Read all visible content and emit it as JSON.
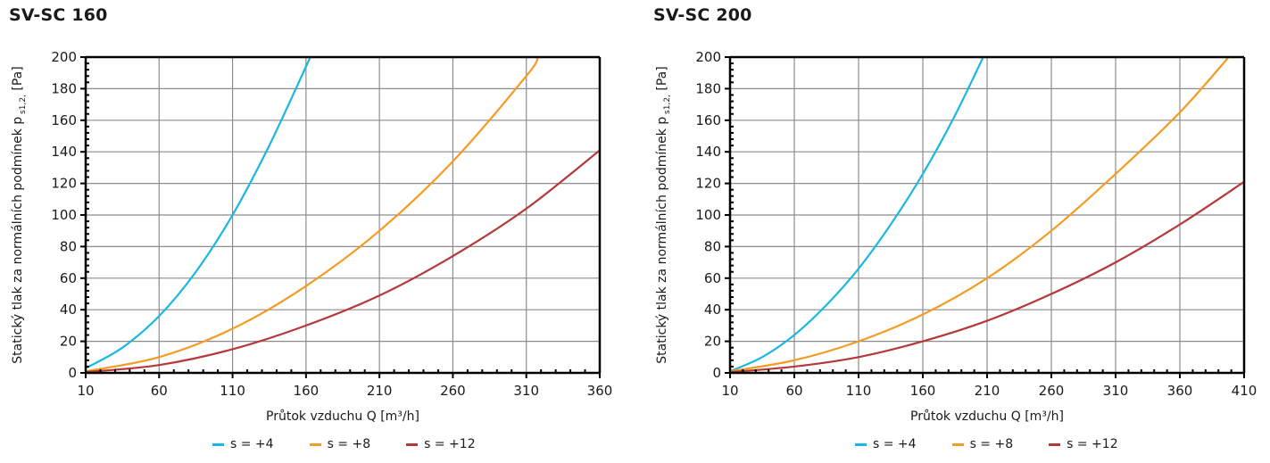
{
  "chart_data": [
    {
      "type": "line",
      "title": "SV-SC 160",
      "xlabel": "Průtok vzduchu Q [m³/h]",
      "ylabel": "Statický tlak za normálních podmínek p",
      "ylabel_sub": "s1,2,",
      "ylabel_unit": "[Pa]",
      "xlim": [
        10,
        360
      ],
      "ylim": [
        0,
        200
      ],
      "xticks": [
        10,
        60,
        110,
        160,
        210,
        260,
        310,
        360
      ],
      "yticks": [
        0,
        20,
        40,
        60,
        80,
        100,
        120,
        140,
        160,
        180,
        200
      ],
      "grid": true,
      "legend_position": "bottom-center",
      "series": [
        {
          "name": "s = +4",
          "color": "#1ab8e0",
          "x": [
            10,
            35,
            60,
            85,
            110,
            135,
            160,
            163
          ],
          "y": [
            3,
            16,
            36,
            64,
            100,
            144,
            194,
            200
          ]
        },
        {
          "name": "s = +8",
          "color": "#f59b23",
          "x": [
            10,
            60,
            110,
            160,
            210,
            260,
            310,
            318
          ],
          "y": [
            1,
            10,
            28,
            55,
            90,
            134,
            188,
            200
          ]
        },
        {
          "name": "s = +12",
          "color": "#b5383a",
          "x": [
            10,
            60,
            110,
            160,
            210,
            260,
            310,
            360
          ],
          "y": [
            0.5,
            5,
            15,
            30,
            49,
            74,
            104,
            141
          ]
        }
      ]
    },
    {
      "type": "line",
      "title": "SV-SC 200",
      "xlabel": "Průtok vzduchu Q [m³/h]",
      "ylabel": "Statický tlak za normálních podmínek p",
      "ylabel_sub": "s1,2,",
      "ylabel_unit": "[Pa]",
      "xlim": [
        10,
        410
      ],
      "ylim": [
        0,
        200
      ],
      "xticks": [
        10,
        60,
        110,
        160,
        210,
        260,
        310,
        360,
        410
      ],
      "yticks": [
        0,
        20,
        40,
        60,
        80,
        100,
        120,
        140,
        160,
        180,
        200
      ],
      "grid": true,
      "legend_position": "bottom-center",
      "series": [
        {
          "name": "s = +4",
          "color": "#1ab8e0",
          "x": [
            10,
            35,
            60,
            85,
            110,
            135,
            160,
            185,
            207
          ],
          "y": [
            1,
            10,
            24,
            43,
            66,
            94,
            126,
            163,
            200
          ]
        },
        {
          "name": "s = +8",
          "color": "#f59b23",
          "x": [
            10,
            60,
            110,
            160,
            210,
            260,
            310,
            360,
            398
          ],
          "y": [
            1,
            8,
            20,
            37,
            60,
            90,
            126,
            165,
            200
          ]
        },
        {
          "name": "s = +12",
          "color": "#b5383a",
          "x": [
            10,
            60,
            110,
            160,
            210,
            260,
            310,
            360,
            410
          ],
          "y": [
            0.5,
            4,
            10,
            20,
            33,
            50,
            70,
            94,
            121
          ]
        }
      ]
    }
  ]
}
